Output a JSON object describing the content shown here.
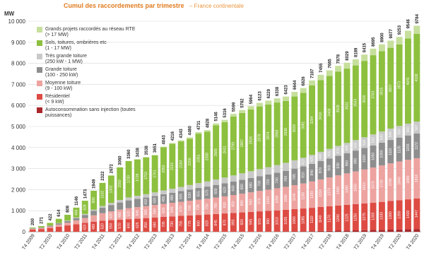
{
  "chart_data": {
    "type": "stacked-bar",
    "title": "Cumul des raccordements par trimestre",
    "subtitle": "– France continentale",
    "y_label": "MW",
    "categories": [
      "T4 2009",
      null,
      "T2 2010",
      null,
      "T4 2010",
      null,
      "T2 2011",
      null,
      "T4 2011",
      null,
      "T2 2012",
      null,
      "T4 2012",
      null,
      "T2 2013",
      null,
      "T4 2013",
      null,
      "T2 2014",
      null,
      "T4 2014",
      null,
      "T2 2015",
      null,
      "T4 2015",
      null,
      "T2 2016",
      null,
      "T4 2016",
      null,
      "T2 2017",
      null,
      "T4 2017",
      null,
      "T2 2018",
      null,
      "T4 2018",
      null,
      "T2 2019",
      null,
      "T4 2019",
      null,
      "T2 2020",
      null,
      "T4 2020"
    ],
    "ylim": [
      0,
      10000
    ],
    "yticks": [
      0,
      {
        "value": 1000,
        "label": "1 000"
      },
      {
        "value": 2000,
        "label": "2 000"
      },
      {
        "value": 3000,
        "label": "3 000"
      },
      {
        "value": 4000,
        "label": "4 000"
      },
      {
        "value": 5000,
        "label": "5 000"
      },
      {
        "value": 6000,
        "label": "6 000"
      },
      {
        "value": 7000,
        "label": "7 000"
      },
      {
        "value": 8000,
        "label": "8 000"
      },
      {
        "value": 9000,
        "label": "9 000"
      },
      {
        "value": 10000,
        "label": "10 000"
      }
    ],
    "grid": true,
    "legend": "upper left",
    "totals": [
      200,
      271,
      422,
      614,
      808,
      1146,
      1473,
      1949,
      2322,
      2672,
      3060,
      3360,
      3438,
      3538,
      3651,
      4043,
      4216,
      4343,
      4480,
      4731,
      4828,
      5146,
      5316,
      5599,
      5782,
      5964,
      6123,
      6229,
      6338,
      6423,
      6644,
      6826,
      7187,
      7455,
      7665,
      7878,
      8029,
      8189,
      8415,
      8695,
      8900,
      9077,
      9253,
      9546,
      9784
    ],
    "series": [
      {
        "name": "Autoconsommation sans injection (toutes\npuissances)",
        "color": "#a9272b",
        "values": [
          0,
          0,
          0,
          0,
          0,
          0,
          0,
          0,
          0,
          0,
          0,
          0,
          0,
          0,
          0,
          0,
          0,
          0,
          0,
          0,
          0,
          0,
          0,
          0,
          0,
          0,
          0,
          0,
          5,
          10,
          15,
          20,
          28,
          35,
          42,
          50,
          58,
          66,
          74,
          82,
          90,
          100,
          110,
          120,
          130
        ]
      },
      {
        "name": "Résidentiel\n(< 9 kW)",
        "color": "#dd4b43",
        "values": [
          100,
          130,
          180,
          240,
          300,
          360,
          420,
          480,
          520,
          550,
          570,
          600,
          625,
          650,
          680,
          705,
          730,
          755,
          775,
          800,
          820,
          845,
          870,
          895,
          920,
          945,
          970,
          990,
          1010,
          1035,
          1060,
          1085,
          1110,
          1140,
          1170,
          1200,
          1225,
          1250,
          1275,
          1300,
          1330,
          1360,
          1390,
          1420,
          1447
        ]
      },
      {
        "name": "Moyenne toiture\n(9 - 100 kW)",
        "color": "#eda3a0",
        "values": [
          40,
          50,
          70,
          100,
          130,
          180,
          230,
          300,
          360,
          420,
          480,
          520,
          545,
          565,
          590,
          620,
          645,
          670,
          700,
          725,
          750,
          780,
          810,
          850,
          890,
          930,
          970,
          1010,
          1050,
          1090,
          1140,
          1190,
          1250,
          1310,
          1370,
          1430,
          1490,
          1550,
          1610,
          1670,
          1730,
          1790,
          1840,
          1880,
          1916
        ]
      },
      {
        "name": "Grande toiture\n(100 - 250 kW)",
        "color": "#8e8e8e",
        "values": [
          20,
          25,
          40,
          60,
          80,
          110,
          150,
          210,
          260,
          300,
          340,
          370,
          390,
          410,
          430,
          455,
          480,
          505,
          530,
          555,
          575,
          600,
          620,
          640,
          660,
          680,
          700,
          720,
          740,
          760,
          785,
          810,
          840,
          870,
          900,
          930,
          960,
          990,
          1020,
          1050,
          1080,
          1110,
          1135,
          1155,
          1172
        ]
      },
      {
        "name": "Très grande toiture\n(250 kW - 1 MW)",
        "color": "#c9c9c9",
        "values": [
          5,
          6,
          10,
          15,
          20,
          30,
          45,
          60,
          80,
          100,
          120,
          140,
          150,
          160,
          170,
          180,
          190,
          200,
          215,
          230,
          245,
          260,
          275,
          290,
          305,
          320,
          335,
          350,
          365,
          380,
          395,
          410,
          425,
          440,
          455,
          470,
          485,
          500,
          510,
          520,
          530,
          540,
          550,
          560,
          567
        ]
      },
      {
        "name": "Sols, toitures, ombrières etc\n(1 - 17 MW)",
        "color": "#8dc03f",
        "values": [
          35,
          60,
          122,
          199,
          278,
          466,
          628,
          899,
          1102,
          1302,
          1550,
          1730,
          1728,
          1753,
          1761,
          2053,
          2131,
          2163,
          2200,
          2351,
          2358,
          2566,
          2631,
          2799,
          2867,
          2934,
          2978,
          2974,
          2968,
          2938,
          3029,
          3081,
          3294,
          3410,
          3468,
          3528,
          3531,
          3543,
          3626,
          3763,
          3815,
          3837,
          3873,
          4041,
          4168
        ]
      },
      {
        "name": "Grands projets raccordés au réseau RTE\n(> 17 MW)",
        "color": "#c6df9c",
        "values": [
          0,
          0,
          0,
          0,
          0,
          0,
          0,
          0,
          0,
          0,
          0,
          0,
          0,
          0,
          20,
          30,
          40,
          50,
          60,
          70,
          80,
          95,
          110,
          125,
          140,
          155,
          170,
          185,
          200,
          210,
          220,
          230,
          240,
          250,
          260,
          270,
          280,
          290,
          300,
          310,
          325,
          340,
          355,
          370,
          384
        ]
      }
    ]
  }
}
